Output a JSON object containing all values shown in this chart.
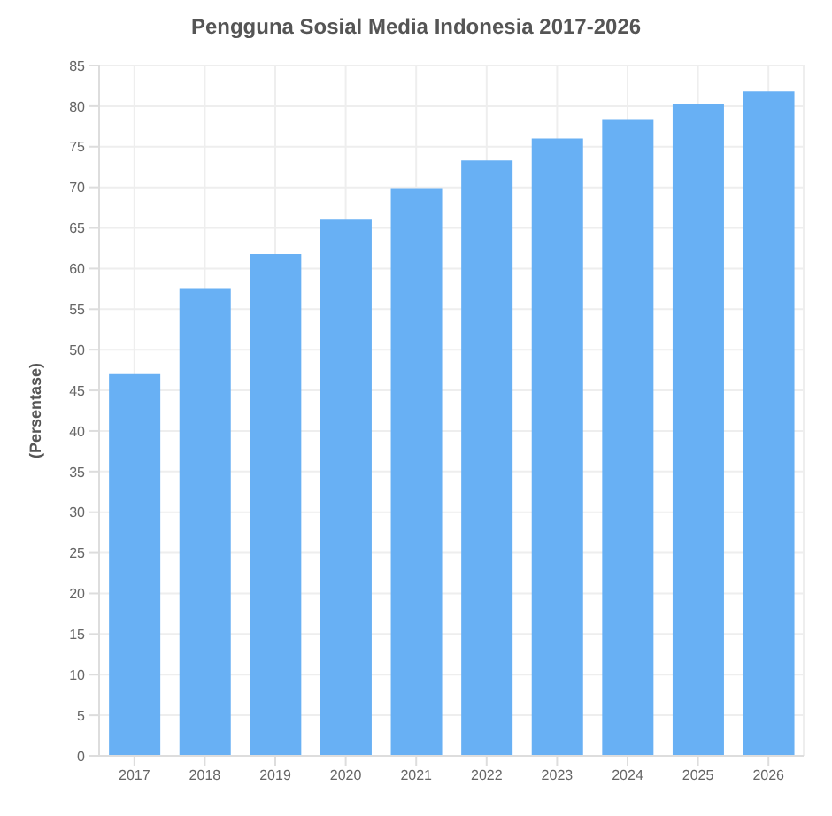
{
  "chart_data": {
    "type": "bar",
    "title": "Pengguna Sosial Media Indonesia 2017-2026",
    "ylabel": "(Persentase)",
    "categories": [
      "2017",
      "2018",
      "2019",
      "2020",
      "2021",
      "2022",
      "2023",
      "2024",
      "2025",
      "2026"
    ],
    "values": [
      47.0,
      57.6,
      61.8,
      66.0,
      69.9,
      73.3,
      76.0,
      78.3,
      80.2,
      81.8
    ],
    "color": "#68b0f4",
    "ylim": [
      0,
      85
    ],
    "yticks": [
      0,
      5,
      10,
      15,
      20,
      25,
      30,
      35,
      40,
      45,
      50,
      55,
      60,
      65,
      70,
      75,
      80,
      85
    ],
    "grid": true
  }
}
